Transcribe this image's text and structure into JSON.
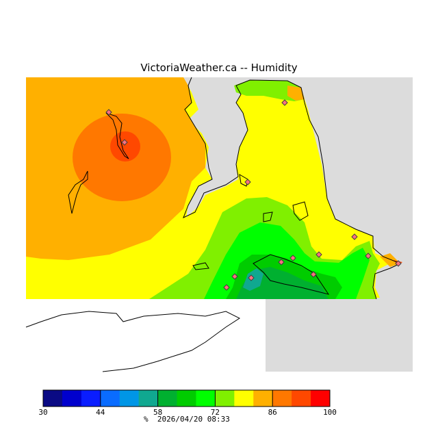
{
  "header": {
    "title": "VictoriaWeather.ca -- Humidity"
  },
  "legend": {
    "unit": "%",
    "timestamp": "2026/04/20 08:33",
    "range": [
      30,
      100
    ],
    "tick_labels": [
      "30",
      "44",
      "58",
      "72",
      "86",
      "100"
    ],
    "colors": [
      "#0a0a84",
      "#0000cd",
      "#0a1dff",
      "#0a6cff",
      "#0096e6",
      "#10a890",
      "#00b030",
      "#00cc00",
      "#00ff00",
      "#80f000",
      "#ffff00",
      "#ffb000",
      "#ff7800",
      "#ff4800",
      "#ff0000"
    ]
  },
  "map": {
    "land_color": "#dcdcdc",
    "water_color": "#ffffff",
    "station_marker_icon": "diamond-marker-icon"
  }
}
